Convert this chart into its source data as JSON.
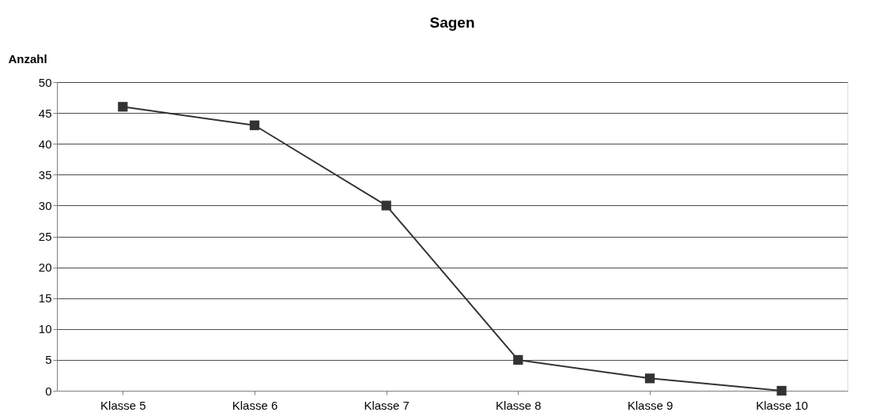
{
  "chart_data": {
    "type": "line",
    "title": "Sagen",
    "ylabel": "Anzahl",
    "categories": [
      "Klasse 5",
      "Klasse 6",
      "Klasse 7",
      "Klasse 8",
      "Klasse 9",
      "Klasse 10"
    ],
    "series": [
      {
        "color": "#333333",
        "values": [
          46,
          43,
          30,
          5,
          2,
          0
        ]
      }
    ],
    "ylim": [
      0,
      50
    ],
    "yticks": [
      0,
      5,
      10,
      15,
      20,
      25,
      30,
      35,
      40,
      45,
      50
    ],
    "grid": "y",
    "marker": "square",
    "line_style": "solid",
    "legend": false
  }
}
